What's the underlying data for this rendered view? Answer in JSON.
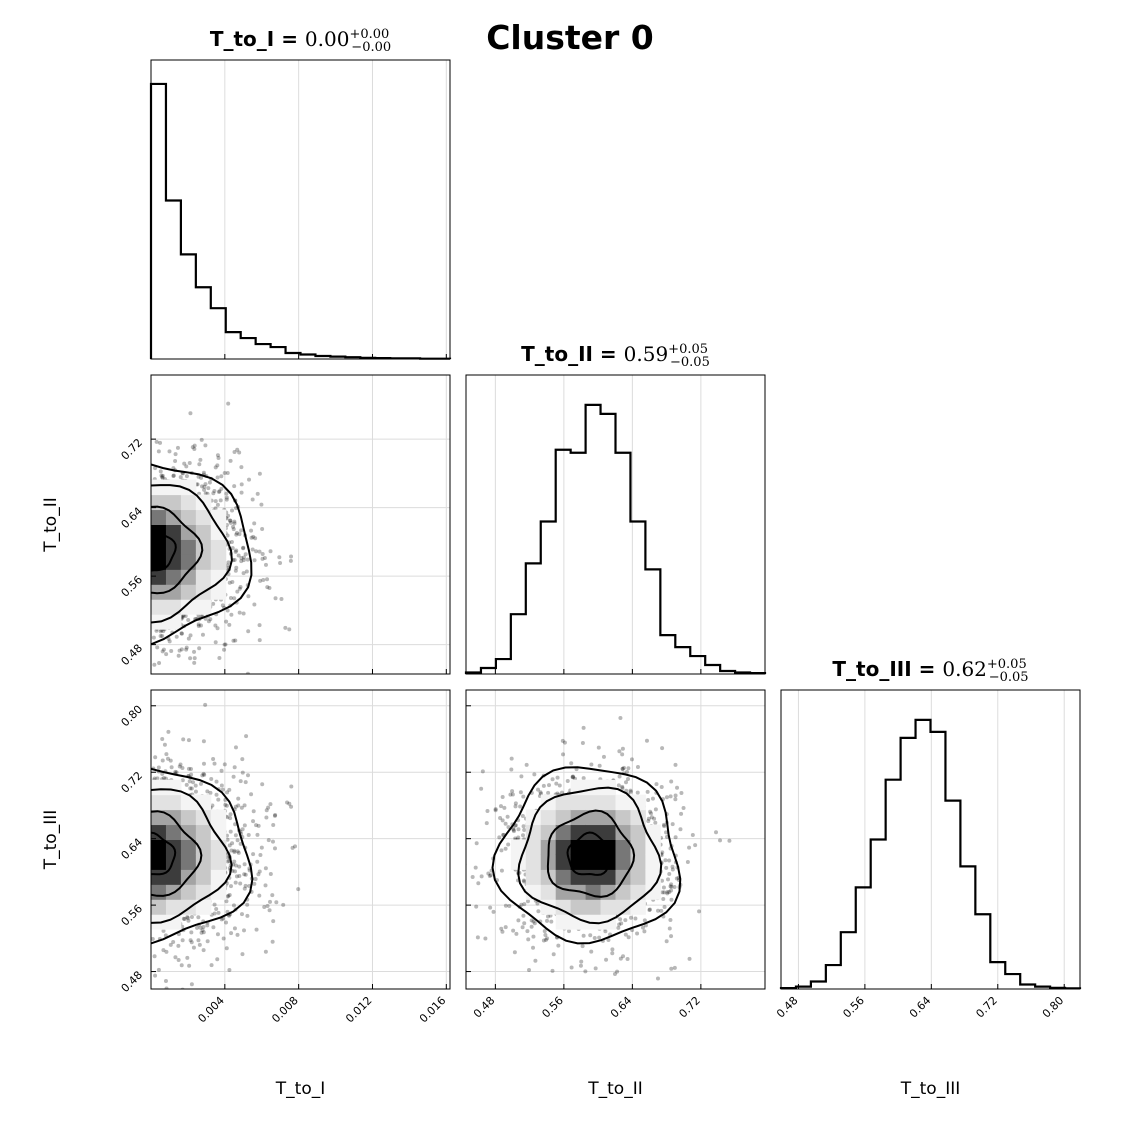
{
  "figure": {
    "title": "Cluster 0"
  },
  "chart_data": {
    "type": "corner",
    "parameters": [
      {
        "name": "T_to_I",
        "xlabel": "T_to_I",
        "ylabel": "",
        "stat_label": "T_to_I = ",
        "median": "0.00",
        "plus": "+0.00",
        "minus": "−0.00",
        "range": [
          0,
          0.0162
        ],
        "ticks": [
          0.004,
          0.008,
          0.012,
          0.016
        ],
        "tick_labels": [
          "0.004",
          "0.008",
          "0.012",
          "0.016"
        ],
        "hist_values": [
          0.92,
          0.53,
          0.35,
          0.24,
          0.17,
          0.09,
          0.07,
          0.05,
          0.04,
          0.02,
          0.015,
          0.01,
          0.008,
          0.006,
          0.004,
          0.003,
          0.002,
          0.002,
          0.001,
          0.001
        ]
      },
      {
        "name": "T_to_II",
        "xlabel": "T_to_II",
        "ylabel": "T_to_II",
        "stat_label": "T_to_II = ",
        "median": "0.59",
        "plus": "+0.05",
        "minus": "−0.05",
        "range": [
          0.4457,
          0.7949
        ],
        "ticks": [
          0.48,
          0.56,
          0.64,
          0.72
        ],
        "tick_labels": [
          "0.48",
          "0.56",
          "0.64",
          "0.72"
        ],
        "hist_values": [
          0.005,
          0.02,
          0.05,
          0.2,
          0.37,
          0.51,
          0.75,
          0.74,
          0.9,
          0.87,
          0.74,
          0.51,
          0.35,
          0.13,
          0.09,
          0.06,
          0.03,
          0.01,
          0.005,
          0.003
        ]
      },
      {
        "name": "T_to_III",
        "xlabel": "T_to_III",
        "ylabel": "T_to_III",
        "stat_label": "T_to_III = ",
        "median": "0.62",
        "plus": "+0.05",
        "minus": "−0.05",
        "range": [
          0.459,
          0.819
        ],
        "ticks": [
          0.48,
          0.56,
          0.64,
          0.72,
          0.8
        ],
        "tick_labels": [
          "0.48",
          "0.56",
          "0.64",
          "0.72",
          "0.80"
        ],
        "hist_values": [
          0.003,
          0.008,
          0.025,
          0.08,
          0.19,
          0.34,
          0.5,
          0.7,
          0.84,
          0.9,
          0.86,
          0.63,
          0.41,
          0.25,
          0.09,
          0.05,
          0.015,
          0.008,
          0.004,
          0.002
        ]
      }
    ],
    "joint": [
      {
        "x": "T_to_I",
        "y": "T_to_II",
        "mean": [
          0.0012,
          0.59
        ],
        "sd": [
          0.0022,
          0.05
        ],
        "x_floor": 0,
        "n_points": 1200
      },
      {
        "x": "T_to_I",
        "y": "T_to_III",
        "mean": [
          0.0012,
          0.62
        ],
        "sd": [
          0.0022,
          0.05
        ],
        "x_floor": 0,
        "n_points": 1200
      },
      {
        "x": "T_to_II",
        "y": "T_to_III",
        "mean": [
          0.59,
          0.62
        ],
        "sd": [
          0.05,
          0.05
        ],
        "n_points": 1400
      }
    ],
    "grid": true,
    "colors": {
      "ink": "#000000",
      "grid": "#dcdcdc",
      "background": "#ffffff"
    }
  }
}
